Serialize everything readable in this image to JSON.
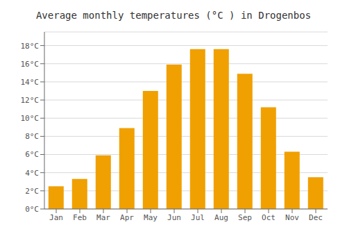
{
  "chart_data": {
    "type": "bar",
    "title": "Average monthly temperatures (°C ) in Drogenbos",
    "categories": [
      "Jan",
      "Feb",
      "Mar",
      "Apr",
      "May",
      "Jun",
      "Jul",
      "Aug",
      "Sep",
      "Oct",
      "Nov",
      "Dec"
    ],
    "values": [
      2.5,
      3.3,
      5.9,
      8.9,
      13.0,
      15.9,
      17.6,
      17.6,
      14.9,
      11.2,
      6.3,
      3.5
    ],
    "color": "#F0A000",
    "ylim": [
      0,
      19.5
    ],
    "yticks": [
      {
        "value": 0,
        "label": "0°C"
      },
      {
        "value": 2,
        "label": "2°C"
      },
      {
        "value": 4,
        "label": "4°C"
      },
      {
        "value": 6,
        "label": "6°C"
      },
      {
        "value": 8,
        "label": "8°C"
      },
      {
        "value": 10,
        "label": "10°C"
      },
      {
        "value": 12,
        "label": "12°C"
      },
      {
        "value": 14,
        "label": "14°C"
      },
      {
        "value": 16,
        "label": "16°C"
      },
      {
        "value": 18,
        "label": "18°C"
      }
    ],
    "grid": true
  }
}
